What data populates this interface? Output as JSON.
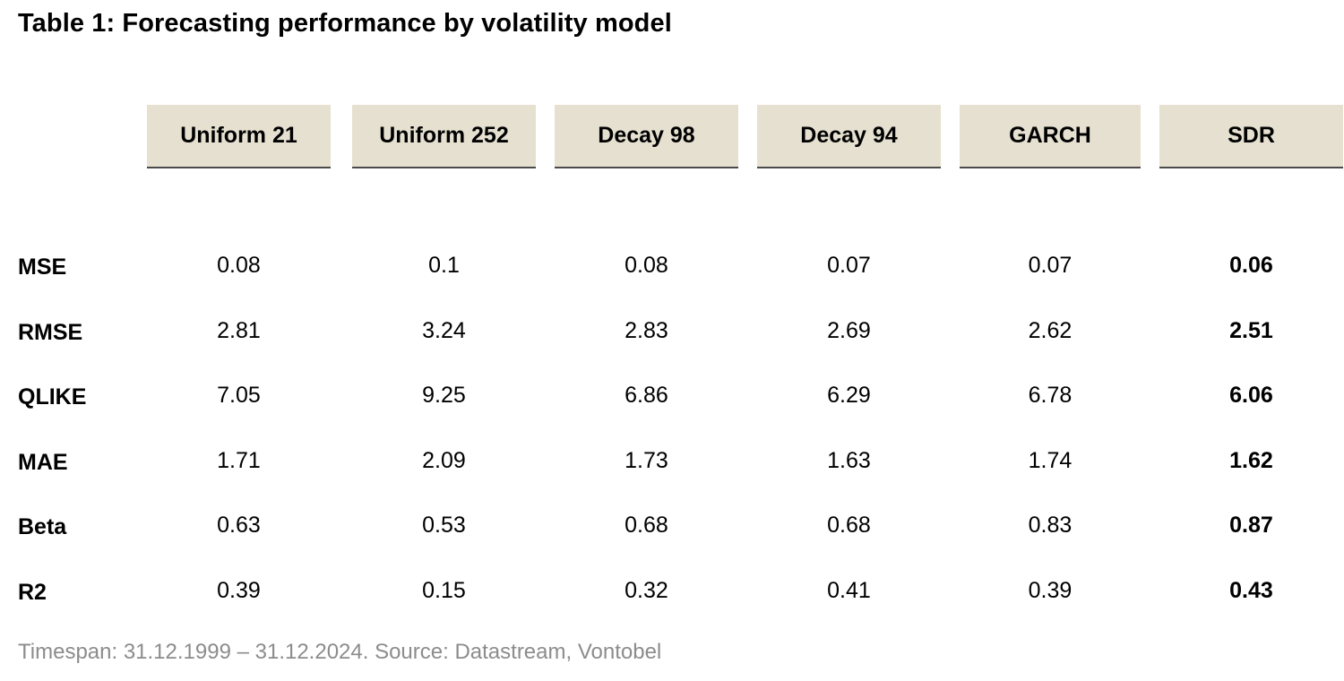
{
  "title": "Table 1: Forecasting performance by volatility model",
  "source": "Timespan: 31.12.1999 – 31.12.2024. Source: Datastream, Vontobel",
  "colors": {
    "header_fill": "#e5e0d0",
    "header_rule": "#4a4a4a",
    "source_text": "#8c8c8c"
  },
  "chart_data": {
    "type": "table",
    "title": "Table 1: Forecasting performance by volatility model",
    "columns": [
      "Uniform 21",
      "Uniform 252",
      "Decay 98",
      "Decay 94",
      "GARCH",
      "SDR"
    ],
    "highlight_column": "SDR",
    "rows": [
      {
        "label": "MSE",
        "values": [
          "0.08",
          "0.1",
          "0.08",
          "0.07",
          "0.07",
          "0.06"
        ]
      },
      {
        "label": "RMSE",
        "values": [
          "2.81",
          "3.24",
          "2.83",
          "2.69",
          "2.62",
          "2.51"
        ]
      },
      {
        "label": "QLIKE",
        "values": [
          "7.05",
          "9.25",
          "6.86",
          "6.29",
          "6.78",
          "6.06"
        ]
      },
      {
        "label": "MAE",
        "values": [
          "1.71",
          "2.09",
          "1.73",
          "1.63",
          "1.74",
          "1.62"
        ]
      },
      {
        "label": "Beta",
        "values": [
          "0.63",
          "0.53",
          "0.68",
          "0.68",
          "0.83",
          "0.87"
        ]
      },
      {
        "label": "R2",
        "values": [
          "0.39",
          "0.15",
          "0.32",
          "0.41",
          "0.39",
          "0.43"
        ]
      }
    ]
  }
}
